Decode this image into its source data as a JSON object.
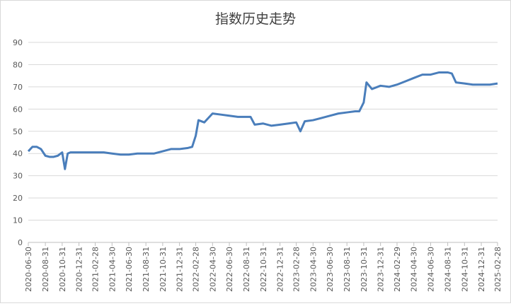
{
  "chart_data": {
    "type": "line",
    "title": "指数历史走势",
    "x": [
      "2020-06-30",
      "2020-07-15",
      "2020-07-31",
      "2020-08-15",
      "2020-08-31",
      "2020-09-15",
      "2020-09-30",
      "2020-10-15",
      "2020-10-31",
      "2020-11-10",
      "2020-11-20",
      "2020-11-30",
      "2020-12-31",
      "2021-01-31",
      "2021-02-28",
      "2021-03-31",
      "2021-04-30",
      "2021-05-31",
      "2021-06-30",
      "2021-07-31",
      "2021-08-31",
      "2021-09-30",
      "2021-10-31",
      "2021-11-30",
      "2021-12-31",
      "2022-01-31",
      "2022-02-15",
      "2022-02-28",
      "2022-03-10",
      "2022-03-31",
      "2022-04-15",
      "2022-04-30",
      "2022-05-31",
      "2022-06-30",
      "2022-07-31",
      "2022-08-31",
      "2022-09-15",
      "2022-09-30",
      "2022-10-31",
      "2022-11-30",
      "2022-12-31",
      "2023-01-31",
      "2023-02-28",
      "2023-03-15",
      "2023-03-31",
      "2023-04-30",
      "2023-05-31",
      "2023-06-30",
      "2023-07-31",
      "2023-08-31",
      "2023-09-30",
      "2023-10-15",
      "2023-10-31",
      "2023-11-10",
      "2023-11-30",
      "2023-12-31",
      "2024-01-31",
      "2024-02-29",
      "2024-03-31",
      "2024-04-30",
      "2024-05-31",
      "2024-06-30",
      "2024-07-31",
      "2024-08-31",
      "2024-09-15",
      "2024-09-30",
      "2024-10-31",
      "2024-11-30",
      "2024-12-31",
      "2025-01-31",
      "2025-02-28"
    ],
    "series": [
      {
        "color": "#4a7ebb",
        "values": [
          41,
          43,
          43,
          42,
          39,
          38.5,
          38.5,
          39,
          40.5,
          33,
          40,
          40.5,
          40.5,
          40.5,
          40.5,
          40.5,
          40,
          39.5,
          39.5,
          40,
          40,
          40,
          41,
          42,
          42,
          42.5,
          43,
          48,
          55,
          54,
          56,
          58,
          57.5,
          57,
          56.5,
          56.5,
          56.5,
          53,
          53.5,
          52.5,
          53,
          53.5,
          54,
          50,
          54.5,
          55,
          56,
          57,
          58,
          58.5,
          59,
          59,
          63,
          72,
          69,
          70.5,
          70,
          71,
          72.5,
          74,
          75.5,
          75.5,
          76.5,
          76.5,
          76,
          72,
          71.5,
          71,
          71,
          71,
          71.5
        ]
      }
    ],
    "xlim": [
      "2020-06-30",
      "2025-02-28"
    ],
    "xticks": [
      "2020-06-30",
      "2020-08-31",
      "2020-10-31",
      "2020-12-31",
      "2021-02-28",
      "2021-04-30",
      "2021-06-30",
      "2021-08-31",
      "2021-10-31",
      "2021-12-31",
      "2022-02-28",
      "2022-04-30",
      "2022-06-30",
      "2022-08-31",
      "2022-10-31",
      "2022-12-31",
      "2023-02-28",
      "2023-04-30",
      "2023-06-30",
      "2023-08-31",
      "2023-10-31",
      "2023-12-31",
      "2024-02-29",
      "2024-04-30",
      "2024-06-30",
      "2024-08-31",
      "2024-10-31",
      "2024-12-31",
      "2025-02-28"
    ],
    "ylim": [
      0,
      90
    ],
    "yticks": [
      0,
      10,
      20,
      30,
      40,
      50,
      60,
      70,
      80,
      90
    ],
    "grid": true
  }
}
